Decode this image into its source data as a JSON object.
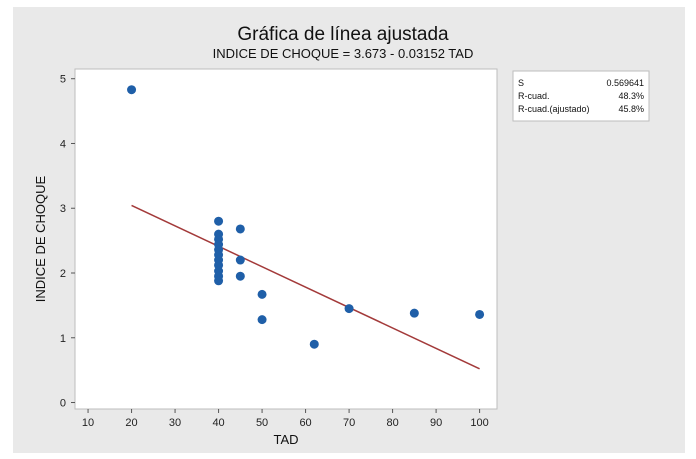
{
  "chart_data": {
    "type": "scatter",
    "title": "Gráfica de línea ajustada",
    "subtitle": "INDICE DE CHOQUE = 3.673 - 0.03152 TAD",
    "xlabel": "TAD",
    "ylabel": "INDICE DE CHOQUE",
    "xlim": [
      7,
      104
    ],
    "ylim": [
      -0.1,
      5.15
    ],
    "xticks": [
      10,
      20,
      30,
      40,
      50,
      60,
      70,
      80,
      90,
      100
    ],
    "yticks": [
      0,
      1,
      2,
      3,
      4,
      5
    ],
    "grid": false,
    "points": [
      {
        "x": 20,
        "y": 4.83
      },
      {
        "x": 40,
        "y": 2.8
      },
      {
        "x": 40,
        "y": 2.6
      },
      {
        "x": 40,
        "y": 2.52
      },
      {
        "x": 40,
        "y": 2.44
      },
      {
        "x": 40,
        "y": 2.36
      },
      {
        "x": 40,
        "y": 2.28
      },
      {
        "x": 40,
        "y": 2.2
      },
      {
        "x": 40,
        "y": 2.12
      },
      {
        "x": 40,
        "y": 2.03
      },
      {
        "x": 40,
        "y": 1.95
      },
      {
        "x": 40,
        "y": 1.88
      },
      {
        "x": 45,
        "y": 2.68
      },
      {
        "x": 45,
        "y": 2.2
      },
      {
        "x": 45,
        "y": 1.95
      },
      {
        "x": 50,
        "y": 1.67
      },
      {
        "x": 50,
        "y": 1.28
      },
      {
        "x": 62,
        "y": 0.9
      },
      {
        "x": 70,
        "y": 1.45
      },
      {
        "x": 85,
        "y": 1.38
      },
      {
        "x": 100,
        "y": 1.36
      }
    ],
    "fit_line": {
      "intercept": 3.673,
      "slope": -0.03152,
      "x_range": [
        20,
        100
      ]
    },
    "stats": [
      {
        "label": "S",
        "value": "0.569641"
      },
      {
        "label": "R-cuad.",
        "value": "48.3%"
      },
      {
        "label": "R-cuad.(ajustado)",
        "value": "45.8%"
      }
    ],
    "colors": {
      "point": "#1f5fa8",
      "fit_line": "#a33a3a",
      "plot_bg": "#ffffff",
      "frame_bg": "#e9e9e9"
    }
  }
}
